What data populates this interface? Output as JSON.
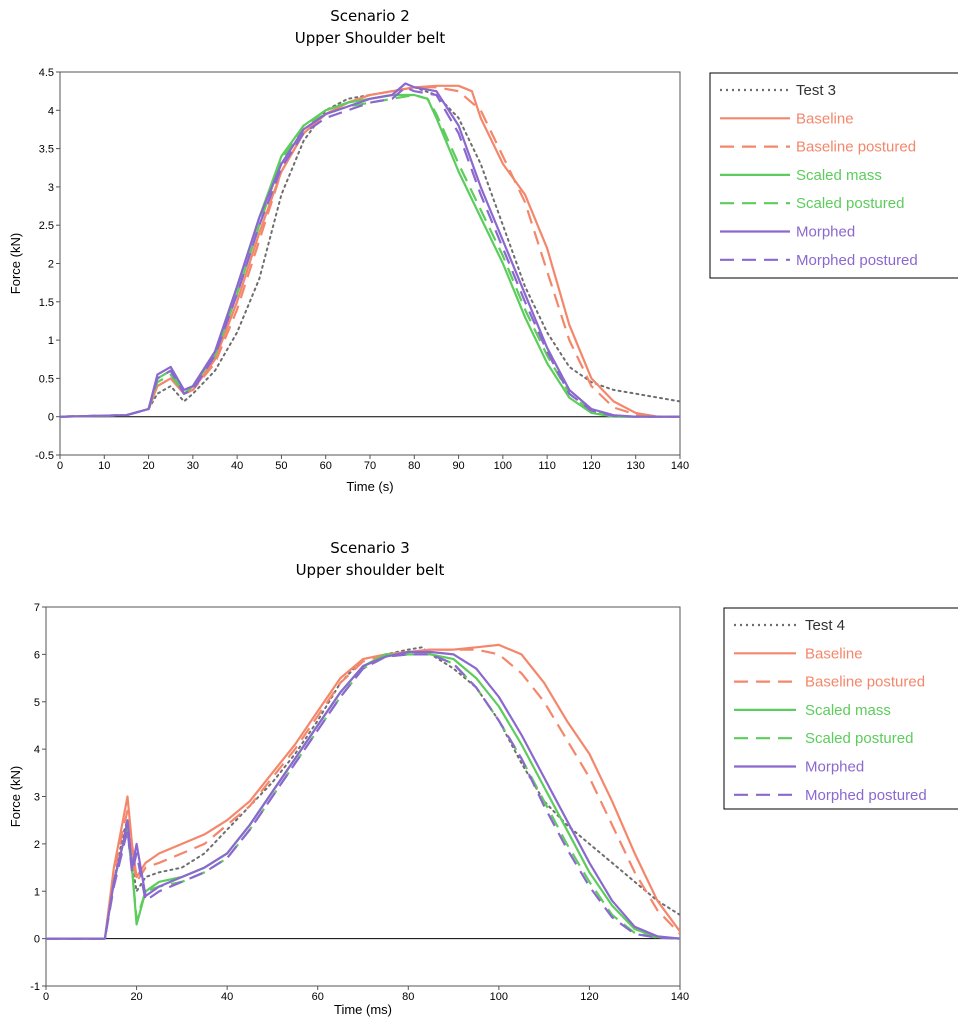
{
  "chart_data": [
    {
      "type": "line",
      "title": "Scenario 2",
      "subtitle": "Upper Shoulder belt",
      "xlabel": "Time (s)",
      "ylabel": "Force (kN)",
      "xlim": [
        0,
        140
      ],
      "ylim": [
        -0.5,
        4.5
      ],
      "xticks": [
        "0",
        "10",
        "20",
        "30",
        "40",
        "50",
        "60",
        "70",
        "80",
        "90",
        "100",
        "110",
        "120",
        "130",
        "140"
      ],
      "yticks": [
        "-0.5",
        "0",
        "0.5",
        "1",
        "1.5",
        "2",
        "2.5",
        "3",
        "3.5",
        "4",
        "4.5"
      ],
      "grid": false,
      "legend_position": "right",
      "series": [
        {
          "name": "Test 3",
          "color": "#6e6e6e",
          "dash": "dot",
          "x": [
            0,
            15,
            20,
            22,
            25,
            28,
            30,
            35,
            40,
            45,
            50,
            55,
            60,
            65,
            70,
            75,
            80,
            85,
            90,
            95,
            100,
            105,
            110,
            115,
            120,
            125,
            130,
            135,
            140
          ],
          "y": [
            0,
            0.02,
            0.1,
            0.3,
            0.4,
            0.2,
            0.3,
            0.6,
            1.1,
            1.8,
            2.9,
            3.6,
            4.0,
            4.15,
            4.2,
            4.25,
            4.3,
            4.2,
            3.9,
            3.3,
            2.5,
            1.7,
            1.1,
            0.65,
            0.45,
            0.35,
            0.3,
            0.25,
            0.2
          ]
        },
        {
          "name": "Baseline",
          "color": "#f4876b",
          "dash": "solid",
          "x": [
            0,
            15,
            20,
            22,
            25,
            28,
            30,
            35,
            40,
            45,
            50,
            55,
            60,
            65,
            70,
            75,
            80,
            85,
            90,
            93,
            95,
            100,
            105,
            110,
            115,
            120,
            125,
            130,
            135,
            140
          ],
          "y": [
            0,
            0.02,
            0.1,
            0.4,
            0.5,
            0.3,
            0.35,
            0.75,
            1.5,
            2.4,
            3.2,
            3.7,
            3.95,
            4.1,
            4.2,
            4.25,
            4.3,
            4.32,
            4.32,
            4.25,
            3.9,
            3.3,
            2.9,
            2.2,
            1.2,
            0.5,
            0.2,
            0.05,
            0,
            0
          ]
        },
        {
          "name": "Baseline postured",
          "color": "#f4876b",
          "dash": "dash",
          "x": [
            0,
            15,
            20,
            22,
            25,
            28,
            30,
            35,
            40,
            45,
            50,
            55,
            60,
            65,
            70,
            75,
            80,
            85,
            90,
            95,
            100,
            105,
            110,
            115,
            120,
            125,
            130,
            135,
            140
          ],
          "y": [
            0,
            0.02,
            0.1,
            0.4,
            0.5,
            0.3,
            0.35,
            0.7,
            1.4,
            2.3,
            3.2,
            3.7,
            3.95,
            4.1,
            4.2,
            4.25,
            4.3,
            4.3,
            4.25,
            4.0,
            3.4,
            2.8,
            1.9,
            1.0,
            0.4,
            0.12,
            0.03,
            0,
            0
          ]
        },
        {
          "name": "Scaled mass",
          "color": "#5ccd5c",
          "dash": "solid",
          "x": [
            0,
            15,
            20,
            22,
            25,
            28,
            30,
            35,
            40,
            45,
            50,
            55,
            60,
            65,
            70,
            75,
            80,
            83,
            85,
            90,
            95,
            100,
            105,
            110,
            115,
            120,
            125,
            130,
            135,
            140
          ],
          "y": [
            0,
            0.02,
            0.1,
            0.5,
            0.6,
            0.3,
            0.4,
            0.85,
            1.7,
            2.6,
            3.4,
            3.8,
            4.0,
            4.1,
            4.15,
            4.2,
            4.2,
            4.15,
            3.9,
            3.2,
            2.6,
            2.0,
            1.3,
            0.7,
            0.25,
            0.05,
            0,
            0,
            0,
            0
          ]
        },
        {
          "name": "Scaled postured",
          "color": "#5ccd5c",
          "dash": "dash",
          "x": [
            0,
            15,
            20,
            22,
            25,
            28,
            30,
            35,
            40,
            45,
            50,
            55,
            60,
            65,
            70,
            75,
            80,
            83,
            85,
            90,
            95,
            100,
            105,
            110,
            115,
            120,
            125,
            130,
            135,
            140
          ],
          "y": [
            0,
            0.02,
            0.1,
            0.45,
            0.55,
            0.3,
            0.4,
            0.8,
            1.6,
            2.5,
            3.35,
            3.8,
            3.95,
            4.05,
            4.1,
            4.15,
            4.2,
            4.15,
            3.95,
            3.3,
            2.7,
            2.1,
            1.4,
            0.8,
            0.3,
            0.07,
            0,
            0,
            0,
            0
          ]
        },
        {
          "name": "Morphed",
          "color": "#8b68cf",
          "dash": "solid",
          "x": [
            0,
            15,
            20,
            22,
            25,
            28,
            30,
            35,
            40,
            45,
            50,
            55,
            60,
            65,
            70,
            75,
            78,
            80,
            85,
            90,
            95,
            100,
            105,
            110,
            115,
            120,
            125,
            130,
            135,
            140
          ],
          "y": [
            0,
            0.02,
            0.1,
            0.55,
            0.65,
            0.35,
            0.4,
            0.85,
            1.7,
            2.6,
            3.3,
            3.75,
            3.95,
            4.05,
            4.15,
            4.2,
            4.35,
            4.3,
            4.25,
            3.8,
            3.0,
            2.3,
            1.6,
            0.9,
            0.35,
            0.1,
            0.02,
            0,
            0,
            0
          ]
        },
        {
          "name": "Morphed postured",
          "color": "#8b68cf",
          "dash": "dash",
          "x": [
            0,
            15,
            20,
            22,
            25,
            28,
            30,
            35,
            40,
            45,
            50,
            55,
            60,
            65,
            70,
            75,
            78,
            80,
            85,
            90,
            95,
            100,
            105,
            110,
            115,
            120,
            125,
            130,
            135,
            140
          ],
          "y": [
            0,
            0.02,
            0.1,
            0.5,
            0.6,
            0.3,
            0.35,
            0.8,
            1.6,
            2.5,
            3.25,
            3.7,
            3.9,
            4.0,
            4.1,
            4.15,
            4.3,
            4.25,
            4.2,
            3.7,
            2.9,
            2.2,
            1.5,
            0.85,
            0.3,
            0.08,
            0.01,
            0,
            0,
            0
          ]
        }
      ]
    },
    {
      "type": "line",
      "title": "Scenario 3",
      "subtitle": "Upper shoulder belt",
      "xlabel": "Time (ms)",
      "ylabel": "Force (kN)",
      "xlim": [
        0,
        140
      ],
      "ylim": [
        -1,
        7
      ],
      "xticks": [
        "0",
        "20",
        "40",
        "60",
        "80",
        "100",
        "120",
        "140"
      ],
      "yticks": [
        "-1",
        "0",
        "1",
        "2",
        "3",
        "4",
        "5",
        "6",
        "7"
      ],
      "grid": false,
      "legend_position": "right",
      "series": [
        {
          "name": "Test 4",
          "color": "#6e6e6e",
          "dash": "dot",
          "x": [
            0,
            13,
            15,
            17,
            18,
            19,
            20,
            22,
            25,
            30,
            35,
            40,
            45,
            50,
            55,
            60,
            65,
            70,
            75,
            80,
            83,
            85,
            90,
            95,
            100,
            105,
            110,
            115,
            120,
            125,
            130,
            135,
            140
          ],
          "y": [
            0,
            0,
            1.2,
            2.2,
            2.5,
            1.6,
            1.0,
            1.3,
            1.4,
            1.5,
            1.8,
            2.3,
            2.8,
            3.3,
            3.9,
            4.6,
            5.4,
            5.9,
            6.0,
            6.1,
            6.15,
            6.0,
            5.7,
            5.3,
            4.6,
            3.7,
            2.9,
            2.4,
            2.0,
            1.6,
            1.2,
            0.8,
            0.5
          ]
        },
        {
          "name": "Baseline",
          "color": "#f4876b",
          "dash": "solid",
          "x": [
            0,
            13,
            15,
            17,
            18,
            19,
            20,
            22,
            25,
            30,
            35,
            40,
            45,
            50,
            55,
            60,
            65,
            70,
            75,
            80,
            85,
            90,
            95,
            100,
            105,
            110,
            115,
            120,
            125,
            130,
            135,
            140
          ],
          "y": [
            0,
            0,
            1.5,
            2.5,
            3.0,
            2.0,
            1.3,
            1.6,
            1.8,
            2.0,
            2.2,
            2.5,
            2.9,
            3.5,
            4.1,
            4.8,
            5.5,
            5.9,
            6.0,
            6.05,
            6.1,
            6.1,
            6.15,
            6.2,
            6.0,
            5.4,
            4.6,
            3.9,
            2.9,
            1.8,
            0.8,
            0.15
          ]
        },
        {
          "name": "Baseline postured",
          "color": "#f4876b",
          "dash": "dash",
          "x": [
            0,
            13,
            15,
            17,
            18,
            19,
            20,
            22,
            25,
            30,
            35,
            40,
            45,
            50,
            55,
            60,
            65,
            70,
            75,
            80,
            85,
            90,
            95,
            100,
            105,
            110,
            115,
            120,
            125,
            130,
            135,
            140
          ],
          "y": [
            0,
            0,
            1.4,
            2.3,
            2.7,
            1.8,
            1.2,
            1.5,
            1.6,
            1.8,
            2.0,
            2.4,
            2.8,
            3.4,
            4.0,
            4.7,
            5.4,
            5.85,
            6.0,
            6.05,
            6.1,
            6.1,
            6.1,
            6.0,
            5.6,
            5.0,
            4.2,
            3.4,
            2.4,
            1.4,
            0.6,
            0.1
          ]
        },
        {
          "name": "Scaled mass",
          "color": "#5ccd5c",
          "dash": "solid",
          "x": [
            0,
            13,
            15,
            17,
            18,
            19,
            20,
            22,
            25,
            30,
            35,
            40,
            45,
            50,
            55,
            60,
            65,
            70,
            75,
            80,
            85,
            90,
            95,
            100,
            105,
            110,
            115,
            120,
            125,
            130,
            135,
            140
          ],
          "y": [
            0,
            0,
            1.2,
            2.0,
            2.3,
            1.5,
            0.3,
            1.0,
            1.2,
            1.3,
            1.5,
            1.8,
            2.4,
            3.1,
            3.8,
            4.5,
            5.2,
            5.75,
            6.0,
            6.0,
            6.0,
            5.9,
            5.5,
            4.9,
            4.1,
            3.2,
            2.3,
            1.4,
            0.7,
            0.2,
            0.03,
            0
          ]
        },
        {
          "name": "Scaled postured",
          "color": "#5ccd5c",
          "dash": "dash",
          "x": [
            0,
            13,
            15,
            17,
            18,
            19,
            20,
            22,
            25,
            30,
            35,
            40,
            45,
            50,
            55,
            60,
            65,
            70,
            75,
            80,
            85,
            90,
            95,
            100,
            105,
            110,
            115,
            120,
            125,
            130,
            135,
            140
          ],
          "y": [
            0,
            0,
            1.2,
            2.0,
            2.2,
            1.5,
            0.4,
            1.0,
            1.1,
            1.2,
            1.4,
            1.7,
            2.3,
            3.0,
            3.7,
            4.4,
            5.1,
            5.7,
            5.95,
            6.0,
            6.0,
            5.8,
            5.3,
            4.6,
            3.8,
            2.9,
            2.0,
            1.2,
            0.5,
            0.12,
            0.02,
            0
          ]
        },
        {
          "name": "Morphed",
          "color": "#8b68cf",
          "dash": "solid",
          "x": [
            0,
            13,
            15,
            17,
            18,
            19,
            20,
            22,
            25,
            30,
            35,
            40,
            45,
            50,
            55,
            60,
            65,
            70,
            75,
            80,
            85,
            90,
            95,
            100,
            105,
            110,
            115,
            120,
            125,
            130,
            135,
            140
          ],
          "y": [
            0,
            0,
            1.2,
            2.0,
            2.5,
            1.5,
            2.0,
            0.9,
            1.1,
            1.3,
            1.5,
            1.8,
            2.4,
            3.1,
            3.8,
            4.5,
            5.2,
            5.75,
            5.95,
            6.05,
            6.05,
            6.0,
            5.7,
            5.1,
            4.3,
            3.4,
            2.5,
            1.6,
            0.8,
            0.25,
            0.05,
            0
          ]
        },
        {
          "name": "Morphed postured",
          "color": "#8b68cf",
          "dash": "dash",
          "x": [
            0,
            13,
            15,
            17,
            18,
            19,
            20,
            22,
            25,
            30,
            35,
            40,
            45,
            50,
            55,
            60,
            65,
            70,
            75,
            80,
            85,
            90,
            95,
            100,
            105,
            110,
            115,
            120,
            125,
            130,
            135,
            140
          ],
          "y": [
            0,
            0,
            1.1,
            1.9,
            2.3,
            1.4,
            1.8,
            0.8,
            1.0,
            1.2,
            1.4,
            1.7,
            2.3,
            3.0,
            3.7,
            4.4,
            5.1,
            5.7,
            5.95,
            6.0,
            6.0,
            5.8,
            5.3,
            4.6,
            3.8,
            2.8,
            1.9,
            1.1,
            0.45,
            0.1,
            0.02,
            0
          ]
        }
      ]
    }
  ]
}
